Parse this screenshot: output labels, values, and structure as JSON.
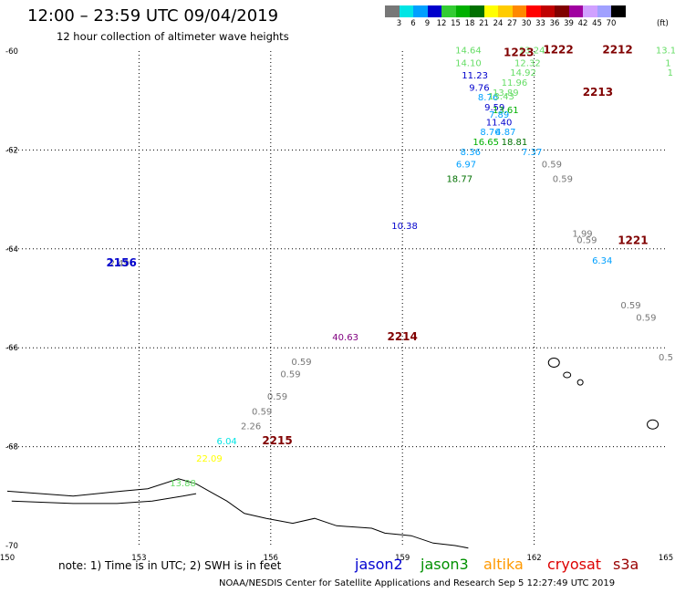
{
  "title": "12:00 – 23:59 UTC 09/04/2019",
  "subtitle": "12 hour collection of altimeter wave heights",
  "legend": {
    "colors": [
      "#777777",
      "#00e5e5",
      "#00a0ff",
      "#0000cc",
      "#33cc33",
      "#00b000",
      "#007000",
      "#ffff00",
      "#ffcc00",
      "#ff8800",
      "#ff0000",
      "#c00000",
      "#800000",
      "#a000a0",
      "#d0a0ff",
      "#a0a0ff",
      "#000000"
    ],
    "ticks": [
      "3",
      "6",
      "9",
      "12",
      "15",
      "18",
      "21",
      "24",
      "27",
      "30",
      "33",
      "36",
      "39",
      "42",
      "45",
      "70"
    ],
    "unit": "(ft)"
  },
  "note": "note: 1) Time is in UTC; 2) SWH is in feet",
  "satellites": [
    {
      "name": "jason2",
      "color": "#0000d0"
    },
    {
      "name": "jason3",
      "color": "#009000"
    },
    {
      "name": "altika",
      "color": "#ff9900"
    },
    {
      "name": "cryosat",
      "color": "#dd0000"
    },
    {
      "name": "s3a",
      "color": "#990000"
    }
  ],
  "credit": "NOAA/NESDIS Center for Satellite Applications and Research   Sep  5 12:27:49 UTC 2019",
  "chart_data": {
    "type": "scatter",
    "x_ticks": [
      {
        "value": 150,
        "label": "150"
      },
      {
        "value": 153,
        "label": "153"
      },
      {
        "value": 156,
        "label": "156"
      },
      {
        "value": 159,
        "label": "159"
      },
      {
        "value": 162,
        "label": "162"
      },
      {
        "value": 165,
        "label": "165"
      }
    ],
    "y_ticks": [
      {
        "value": -60,
        "label": "-60"
      },
      {
        "value": -62,
        "label": "-62"
      },
      {
        "value": -64,
        "label": "-64"
      },
      {
        "value": -66,
        "label": "-66"
      },
      {
        "value": -68,
        "label": "-68"
      },
      {
        "value": -70,
        "label": "-70"
      }
    ],
    "xlim": [
      150,
      165
    ],
    "ylim": [
      -70,
      -60
    ],
    "grid": true,
    "points": [
      {
        "lon": 160.5,
        "lat": -60.05,
        "text": "14.64",
        "color": "#66dd66"
      },
      {
        "lon": 160.5,
        "lat": -60.3,
        "text": "14.10",
        "color": "#66dd66"
      },
      {
        "lon": 160.65,
        "lat": -60.55,
        "text": "11.23",
        "color": "#0000cc"
      },
      {
        "lon": 160.75,
        "lat": -60.8,
        "text": "9.76",
        "color": "#0000cc"
      },
      {
        "lon": 160.95,
        "lat": -61.0,
        "text": "8.76",
        "color": "#00a0ff"
      },
      {
        "lon": 161.25,
        "lat": -60.98,
        "text": "13.43",
        "color": "#66dd66"
      },
      {
        "lon": 161.1,
        "lat": -61.2,
        "text": "9.59",
        "color": "#0000cc"
      },
      {
        "lon": 161.35,
        "lat": -61.25,
        "text": "13.61",
        "color": "#00b000"
      },
      {
        "lon": 161.2,
        "lat": -61.35,
        "text": "7.89",
        "color": "#00a0ff"
      },
      {
        "lon": 161.2,
        "lat": -61.5,
        "text": "11.40",
        "color": "#0000cc"
      },
      {
        "lon": 161.0,
        "lat": -61.7,
        "text": "8.76",
        "color": "#00a0ff"
      },
      {
        "lon": 161.35,
        "lat": -61.7,
        "text": "4.87",
        "color": "#00a0ff"
      },
      {
        "lon": 160.9,
        "lat": -61.9,
        "text": "16.65",
        "color": "#00b000"
      },
      {
        "lon": 161.55,
        "lat": -61.9,
        "text": "18.81",
        "color": "#007000"
      },
      {
        "lon": 160.55,
        "lat": -62.1,
        "text": "8.36",
        "color": "#00a0ff"
      },
      {
        "lon": 161.95,
        "lat": -62.1,
        "text": "7.37",
        "color": "#00a0ff"
      },
      {
        "lon": 160.45,
        "lat": -62.35,
        "text": "6.97",
        "color": "#00a0ff"
      },
      {
        "lon": 162.4,
        "lat": -62.35,
        "text": "0.59",
        "color": "#777777"
      },
      {
        "lon": 160.3,
        "lat": -62.65,
        "text": "18.77",
        "color": "#007000"
      },
      {
        "lon": 162.65,
        "lat": -62.65,
        "text": "0.59",
        "color": "#777777"
      },
      {
        "lon": 161.95,
        "lat": -60.05,
        "text": "13.24",
        "color": "#66dd66"
      },
      {
        "lon": 161.85,
        "lat": -60.3,
        "text": "12.32",
        "color": "#66dd66"
      },
      {
        "lon": 161.75,
        "lat": -60.5,
        "text": "14.92",
        "color": "#66dd66"
      },
      {
        "lon": 161.55,
        "lat": -60.7,
        "text": "11.96",
        "color": "#66dd66"
      },
      {
        "lon": 161.35,
        "lat": -60.9,
        "text": "13.89",
        "color": "#66dd66"
      },
      {
        "lon": 159.05,
        "lat": -63.6,
        "text": "10.38",
        "color": "#0000cc"
      },
      {
        "lon": 163.1,
        "lat": -63.75,
        "text": "1.99",
        "color": "#777777"
      },
      {
        "lon": 163.2,
        "lat": -63.88,
        "text": "0.59",
        "color": "#777777"
      },
      {
        "lon": 163.55,
        "lat": -64.3,
        "text": "6.34",
        "color": "#00a0ff"
      },
      {
        "lon": 164.2,
        "lat": -65.2,
        "text": "0.59",
        "color": "#777777"
      },
      {
        "lon": 164.55,
        "lat": -65.45,
        "text": "0.59",
        "color": "#777777"
      },
      {
        "lon": 165.0,
        "lat": -66.25,
        "text": "0.5",
        "color": "#777777"
      },
      {
        "lon": 165.0,
        "lat": -60.05,
        "text": "13.1",
        "color": "#66dd66"
      },
      {
        "lon": 165.05,
        "lat": -60.3,
        "text": "1",
        "color": "#66dd66"
      },
      {
        "lon": 165.1,
        "lat": -60.5,
        "text": "1",
        "color": "#66dd66"
      },
      {
        "lon": 152.55,
        "lat": -64.35,
        "text": "2.49",
        "color": "#777777"
      },
      {
        "lon": 157.7,
        "lat": -65.85,
        "text": "40.63",
        "color": "#800080"
      },
      {
        "lon": 156.7,
        "lat": -66.35,
        "text": "0.59",
        "color": "#777777"
      },
      {
        "lon": 156.45,
        "lat": -66.6,
        "text": "0.59",
        "color": "#777777"
      },
      {
        "lon": 156.15,
        "lat": -67.05,
        "text": "0.59",
        "color": "#777777"
      },
      {
        "lon": 155.8,
        "lat": -67.35,
        "text": "0.59",
        "color": "#777777"
      },
      {
        "lon": 155.55,
        "lat": -67.65,
        "text": "2.26",
        "color": "#777777"
      },
      {
        "lon": 155.0,
        "lat": -67.95,
        "text": "6.04",
        "color": "#00e5e5"
      },
      {
        "lon": 154.6,
        "lat": -68.3,
        "text": "22.09",
        "color": "#ffff00"
      },
      {
        "lon": 154.0,
        "lat": -68.8,
        "text": "13.88",
        "color": "#66dd66"
      }
    ],
    "time_labels": [
      {
        "lon": 161.65,
        "lat": -60.1,
        "text": "1223",
        "color": "#800000"
      },
      {
        "lon": 162.55,
        "lat": -60.05,
        "text": "1222",
        "color": "#800000"
      },
      {
        "lon": 163.9,
        "lat": -60.05,
        "text": "2212",
        "color": "#800000"
      },
      {
        "lon": 163.45,
        "lat": -60.9,
        "text": "2213",
        "color": "#800000"
      },
      {
        "lon": 164.25,
        "lat": -63.9,
        "text": "1221",
        "color": "#800000"
      },
      {
        "lon": 152.6,
        "lat": -64.35,
        "text": "2156",
        "color": "#0000cc"
      },
      {
        "lon": 159.0,
        "lat": -65.85,
        "text": "2214",
        "color": "#800000"
      },
      {
        "lon": 156.15,
        "lat": -67.95,
        "text": "2215",
        "color": "#800000"
      }
    ]
  }
}
